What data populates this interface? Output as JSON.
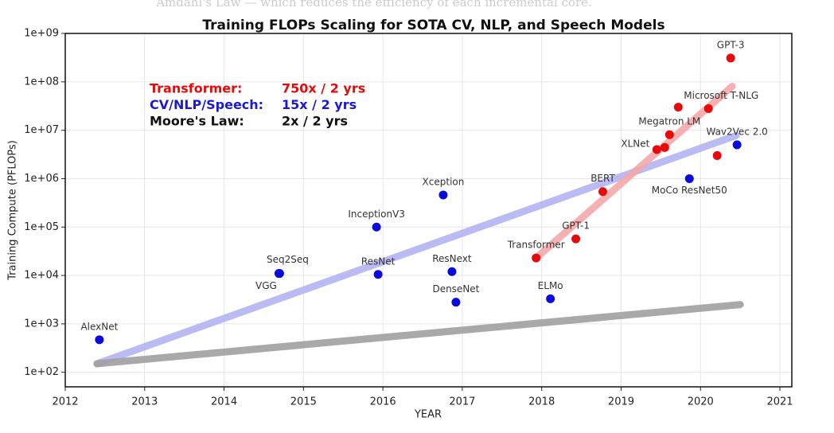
{
  "background_text": "Amdahl's Law — which reduces the efficiency of each incremental core.",
  "chart_data": {
    "type": "scatter",
    "title": "Training FLOPs Scaling for SOTA CV, NLP, and Speech Models",
    "xlabel": "YEAR",
    "ylabel": "Training Compute (PFLOPs)",
    "log_y": true,
    "grid": true,
    "xlim": [
      2012,
      2021.15
    ],
    "ylim": [
      50,
      1000000000
    ],
    "xticks": [
      2012,
      2013,
      2014,
      2015,
      2016,
      2017,
      2018,
      2019,
      2020,
      2021
    ],
    "yticks": [
      {
        "value": 100,
        "label": "1e+02"
      },
      {
        "value": 1000,
        "label": "1e+03"
      },
      {
        "value": 10000,
        "label": "1e+04"
      },
      {
        "value": 100000,
        "label": "1e+05"
      },
      {
        "value": 1000000,
        "label": "1e+06"
      },
      {
        "value": 10000000,
        "label": "1e+07"
      },
      {
        "value": 100000000,
        "label": "1e+08"
      },
      {
        "value": 1000000000,
        "label": "1e+09"
      }
    ],
    "series": [
      {
        "color": "#0a0adc",
        "x": [
          2012.43,
          2014.69,
          2014.7,
          2015.92,
          2015.94,
          2016.76,
          2016.87,
          2016.92,
          2018.11,
          2019.86,
          2020.46
        ],
        "values": [
          470,
          11000,
          11000,
          100000,
          10500,
          460000,
          12000,
          2800,
          3300,
          1000000,
          5000000
        ],
        "labels": [
          "AlexNet",
          "VGG",
          "Seq2Seq",
          "InceptionV3",
          "ResNet",
          "Xception",
          "ResNext",
          "DenseNet",
          "ELMo",
          "MoCo ResNet50",
          "Wav2Vec 2.0"
        ]
      },
      {
        "color": "#e60a0a",
        "x": [
          2017.93,
          2018.43,
          2018.77,
          2019.45,
          2019.55,
          2019.61,
          2019.72,
          2020.1,
          2020.21,
          2020.38
        ],
        "values": [
          23000,
          57000,
          540000,
          4000000,
          4400000,
          8100000,
          30000000,
          28000000,
          3000000,
          310000000
        ],
        "labels": [
          "Transformer",
          "GPT-1",
          "BERT",
          "XLNet",
          null,
          "Megatron LM",
          null,
          "Microsoft T-NLG",
          null,
          "GPT-3"
        ]
      }
    ],
    "trend_lines": [
      {
        "color": "#b4b4f2",
        "x": [
          2012.4,
          2020.45
        ],
        "values": [
          150,
          7800000
        ]
      },
      {
        "color": "#f4a8a8",
        "x": [
          2017.93,
          2020.4
        ],
        "values": [
          23000,
          81000000
        ]
      },
      {
        "color": "#a0a0a0",
        "x": [
          2012.4,
          2020.5
        ],
        "values": [
          150,
          2500
        ]
      }
    ],
    "annotations": [
      {
        "label": "Transformer:",
        "rate": "750x / 2 yrs",
        "color": "#e60a0a"
      },
      {
        "label": "CV/NLP/Speech:",
        "rate": "15x / 2 yrs",
        "color": "#1a1ad0"
      },
      {
        "label": "Moore's Law:",
        "rate": "2x / 2 yrs",
        "color": "#111111"
      }
    ]
  }
}
